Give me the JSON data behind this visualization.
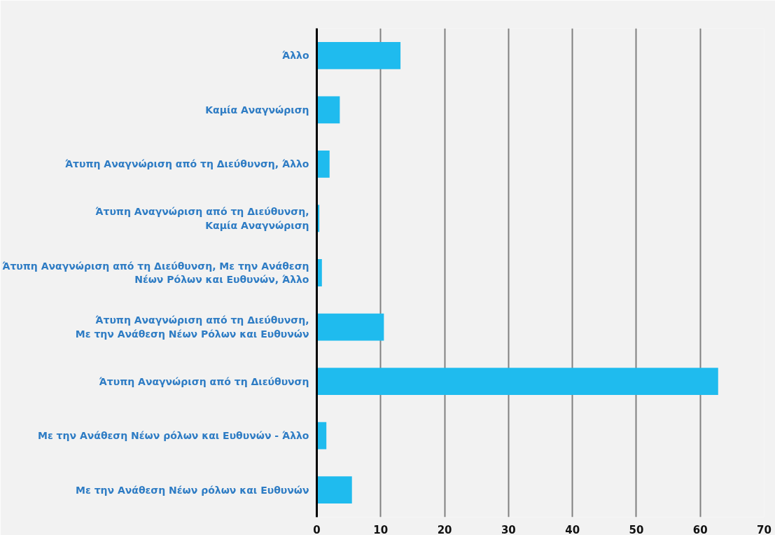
{
  "chart_data": {
    "type": "bar",
    "orientation": "horizontal",
    "categories": [
      "Άλλο",
      "Καμία Αναγνώριση",
      "Άτυπη Αναγνώριση από τη Διεύθυνση, Άλλο",
      "Άτυπη Αναγνώριση από τη Διεύθυνση,\nΚαμία Αναγνώριση",
      "Άτυπη Αναγνώριση από τη Διεύθυνση, Με την Ανάθεση\nΝέων Ρόλων και Ευθυνών, Άλλο",
      "Άτυπη Αναγνώριση από τη Διεύθυνση,\nΜε την Ανάθεση Νέων Ρόλων και Ευθυνών",
      "Άτυπη Αναγνώριση από τη Διεύθυνση",
      "Με την Ανάθεση Νέων ρόλων και Ευθυνών - Άλλο",
      "Με την Ανάθεση Νέων ρόλων και Ευθυνών"
    ],
    "values": [
      13.1,
      3.6,
      2.0,
      0.4,
      0.8,
      10.5,
      62.8,
      1.5,
      5.5
    ],
    "color": "#1fbbee",
    "xlim": [
      0,
      70
    ],
    "xticks": [
      0,
      10,
      20,
      30,
      40,
      50,
      60,
      70
    ],
    "grid": "x"
  }
}
